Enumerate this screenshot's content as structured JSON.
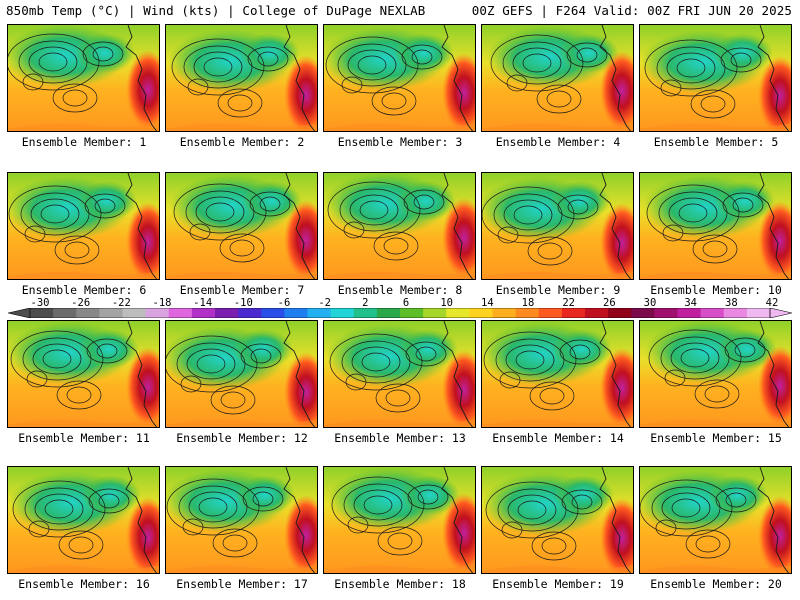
{
  "header": {
    "left": "850mb Temp (°C) | Wind (kts) | College of DuPage NEXLAB",
    "right": "00Z GEFS | F264 Valid: 00Z FRI JUN 20 2025"
  },
  "caption_prefix": "Ensemble Member: ",
  "members": [
    "1",
    "2",
    "3",
    "4",
    "5",
    "6",
    "7",
    "8",
    "9",
    "10",
    "11",
    "12",
    "13",
    "14",
    "15",
    "16",
    "17",
    "18",
    "19",
    "20"
  ],
  "colorbar": {
    "tick_labels": [
      "-30",
      "-26",
      "-22",
      "-18",
      "-14",
      "-10",
      "-6",
      "-2",
      "2",
      "6",
      "10",
      "14",
      "18",
      "22",
      "26",
      "30",
      "34",
      "38",
      "42"
    ],
    "colors": [
      "#4d4d4d",
      "#6b6b6b",
      "#888888",
      "#a3a3a3",
      "#bdbdbd",
      "#d9a3e0",
      "#e066e0",
      "#b030c8",
      "#7a1fb0",
      "#4b2bd0",
      "#2a4fe8",
      "#1f7ff0",
      "#22b0f0",
      "#22d4d8",
      "#22c08a",
      "#2aa84a",
      "#5cbf2a",
      "#a6d62a",
      "#e6e62a",
      "#ffd21f",
      "#ffae1f",
      "#ff8a1f",
      "#ff5a1f",
      "#e8281f",
      "#c0101f",
      "#900018",
      "#7a0a4a",
      "#a0106e",
      "#c020a0",
      "#d84ec8",
      "#e888e0",
      "#f0b8f0"
    ]
  }
}
